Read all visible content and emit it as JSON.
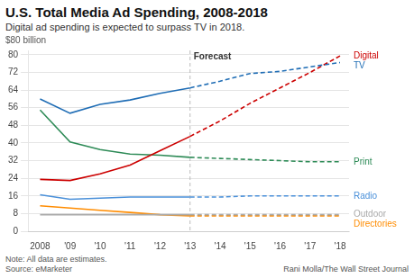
{
  "chart_data": {
    "type": "line",
    "title": "U.S. Total Media Ad Spending, 2008-2018",
    "subtitle": "Digital ad spending is expected to surpass TV in 2018.",
    "ylabel": "$80 billion",
    "note": "Note: All data are estimates.\nSource: eMarketer",
    "credit": "Rani Molla/The Wall Street Journal",
    "annotations": [
      {
        "x": 2013,
        "text": "Forecast"
      }
    ],
    "x": [
      2008,
      2009,
      2010,
      2011,
      2012,
      2013,
      2014,
      2015,
      2016,
      2017,
      2018
    ],
    "series": [
      {
        "name": "TV",
        "color": "#1f6db5",
        "values": [
          60.0,
          53.5,
          57.5,
          59.5,
          62.5,
          65.0,
          null,
          null,
          null,
          null,
          null
        ],
        "forecast_values": [
          null,
          null,
          null,
          null,
          null,
          65.0,
          68.0,
          71.5,
          72.5,
          74.5,
          76.5
        ]
      },
      {
        "name": "Digital",
        "color": "#cc0000",
        "values": [
          23.5,
          23.0,
          26.0,
          30.0,
          36.5,
          43.0,
          null,
          null,
          null,
          null,
          null
        ],
        "forecast_values": [
          null,
          null,
          null,
          null,
          null,
          43.0,
          50.0,
          58.0,
          65.0,
          72.0,
          79.5
        ]
      },
      {
        "name": "Print",
        "color": "#2e8b57",
        "values": [
          55.0,
          40.5,
          37.0,
          35.0,
          34.5,
          33.5,
          null,
          null,
          null,
          null,
          null
        ],
        "forecast_values": [
          null,
          null,
          null,
          null,
          null,
          33.5,
          33.0,
          32.5,
          32.0,
          31.5,
          31.5
        ]
      },
      {
        "name": "Radio",
        "color": "#4a90d9",
        "values": [
          16.5,
          14.5,
          15.0,
          15.5,
          15.5,
          15.5,
          null,
          null,
          null,
          null,
          null
        ],
        "forecast_values": [
          null,
          null,
          null,
          null,
          null,
          15.5,
          15.5,
          16.0,
          16.0,
          16.0,
          16.0
        ]
      },
      {
        "name": "Outdoor",
        "color": "#aaaaaa",
        "values": [
          7.5,
          7.5,
          7.5,
          7.5,
          7.5,
          7.5,
          null,
          null,
          null,
          null,
          null
        ],
        "forecast_values": [
          null,
          null,
          null,
          null,
          null,
          7.5,
          7.5,
          7.5,
          7.5,
          7.5,
          7.5
        ]
      },
      {
        "name": "Directories",
        "color": "#ff8c00",
        "values": [
          11.5,
          10.5,
          9.5,
          8.5,
          7.5,
          7.0,
          null,
          null,
          null,
          null,
          null
        ],
        "forecast_values": [
          null,
          null,
          null,
          null,
          null,
          7.0,
          7.0,
          7.0,
          7.0,
          7.0,
          7.0
        ]
      }
    ],
    "xlim": [
      2007.6,
      2018.3
    ],
    "xticks": [
      {
        "value": 2008,
        "label": "2008"
      },
      {
        "value": 2009,
        "label": "'09"
      },
      {
        "value": 2010,
        "label": "'10"
      },
      {
        "value": 2011,
        "label": "'11"
      },
      {
        "value": 2012,
        "label": "'12"
      },
      {
        "value": 2013,
        "label": "'13"
      },
      {
        "value": 2014,
        "label": "'14"
      },
      {
        "value": 2015,
        "label": "'15"
      },
      {
        "value": 2016,
        "label": "'16"
      },
      {
        "value": 2017,
        "label": "'17"
      },
      {
        "value": 2018,
        "label": "'18"
      }
    ],
    "ylim": [
      0,
      82
    ],
    "yticks": [
      0,
      8,
      16,
      24,
      32,
      40,
      48,
      56,
      64,
      72,
      80
    ],
    "grid": "y"
  }
}
